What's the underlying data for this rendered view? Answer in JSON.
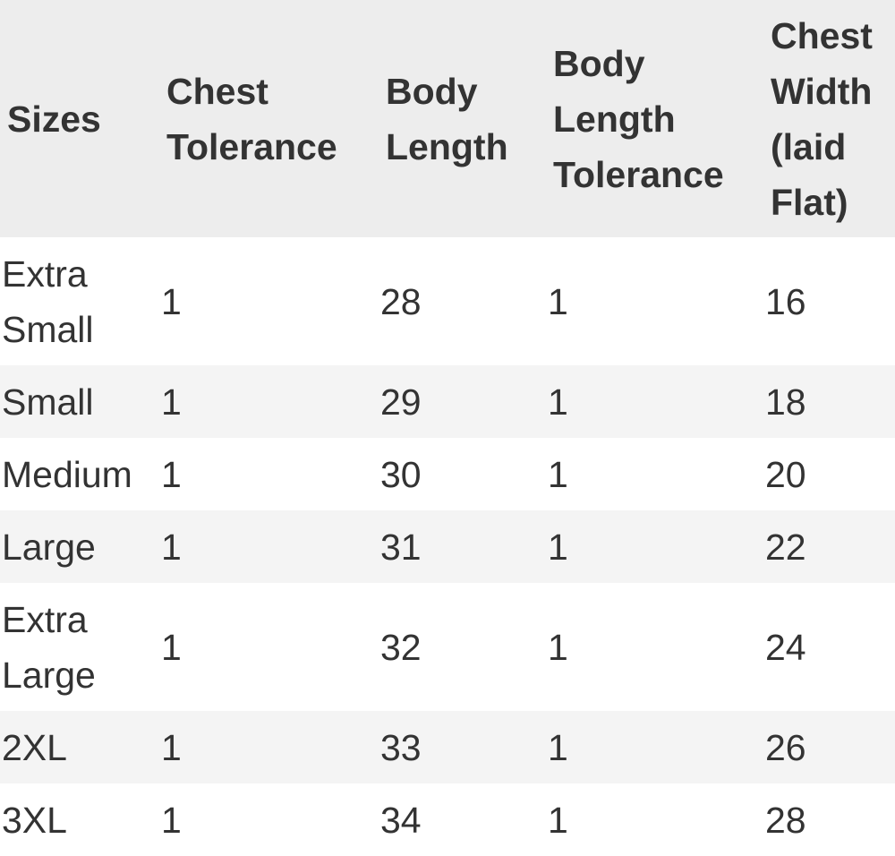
{
  "table": {
    "headers": [
      "Sizes",
      "Chest Tolerance",
      "Body Length",
      "Body Length Tolerance",
      "Chest Width (laid Flat)"
    ],
    "rows": [
      [
        "Extra Small",
        "1",
        "28",
        "1",
        "16"
      ],
      [
        "Small",
        "1",
        "29",
        "1",
        "18"
      ],
      [
        "Medium",
        "1",
        "30",
        "1",
        "20"
      ],
      [
        "Large",
        "1",
        "31",
        "1",
        "22"
      ],
      [
        "Extra Large",
        "1",
        "32",
        "1",
        "24"
      ],
      [
        "2XL",
        "1",
        "33",
        "1",
        "26"
      ],
      [
        "3XL",
        "1",
        "34",
        "1",
        "28"
      ]
    ]
  },
  "colors": {
    "header_bg": "#ededed",
    "stripe_bg": "#f4f4f4",
    "text": "#333333"
  }
}
